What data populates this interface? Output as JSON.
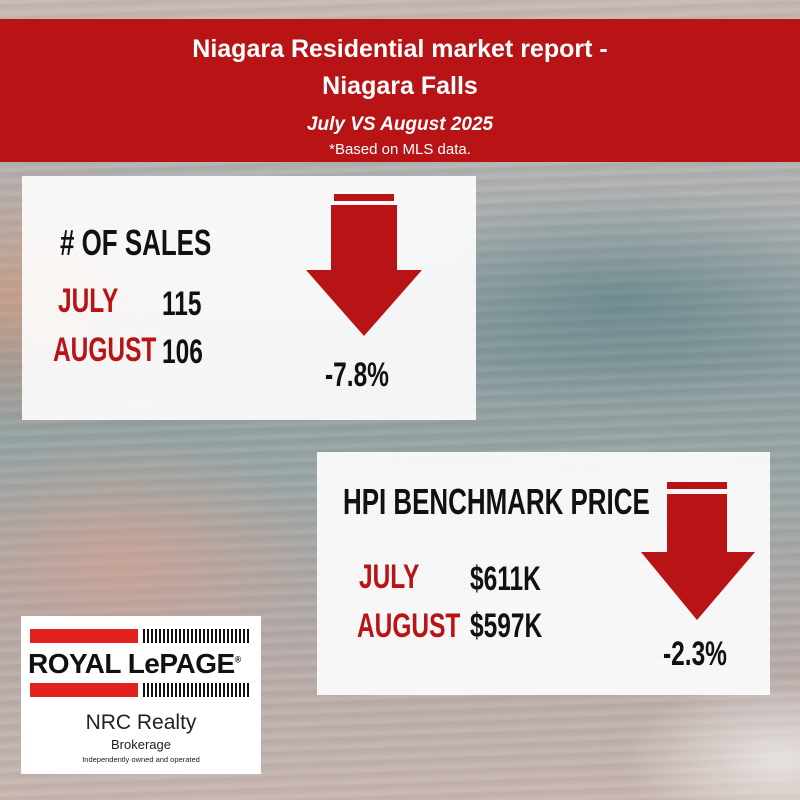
{
  "header": {
    "title_line1": "Niagara Residential market report -",
    "title_line2": "Niagara Falls",
    "subtitle": "July VS August 2025",
    "note": "*Based on MLS data."
  },
  "sales": {
    "heading": "# OF SALES",
    "july_label": "JULY",
    "july_value": "115",
    "august_label": "AUGUST",
    "august_value": "106",
    "change": "-7.8%",
    "direction": "down"
  },
  "hpi": {
    "heading": "HPI BENCHMARK PRICE",
    "july_label": "JULY",
    "july_value": "$611K",
    "august_label": "AUGUST",
    "august_value": "$597K",
    "change": "-2.3%",
    "direction": "down"
  },
  "logo": {
    "brand": "ROYAL LePAGE",
    "registered": "®",
    "office": "NRC Realty",
    "type": "Brokerage",
    "tagline": "Independently owned and operated"
  },
  "colors": {
    "accent_red": "#b81416",
    "brand_red": "#e2201e",
    "text_dark": "#111111"
  }
}
